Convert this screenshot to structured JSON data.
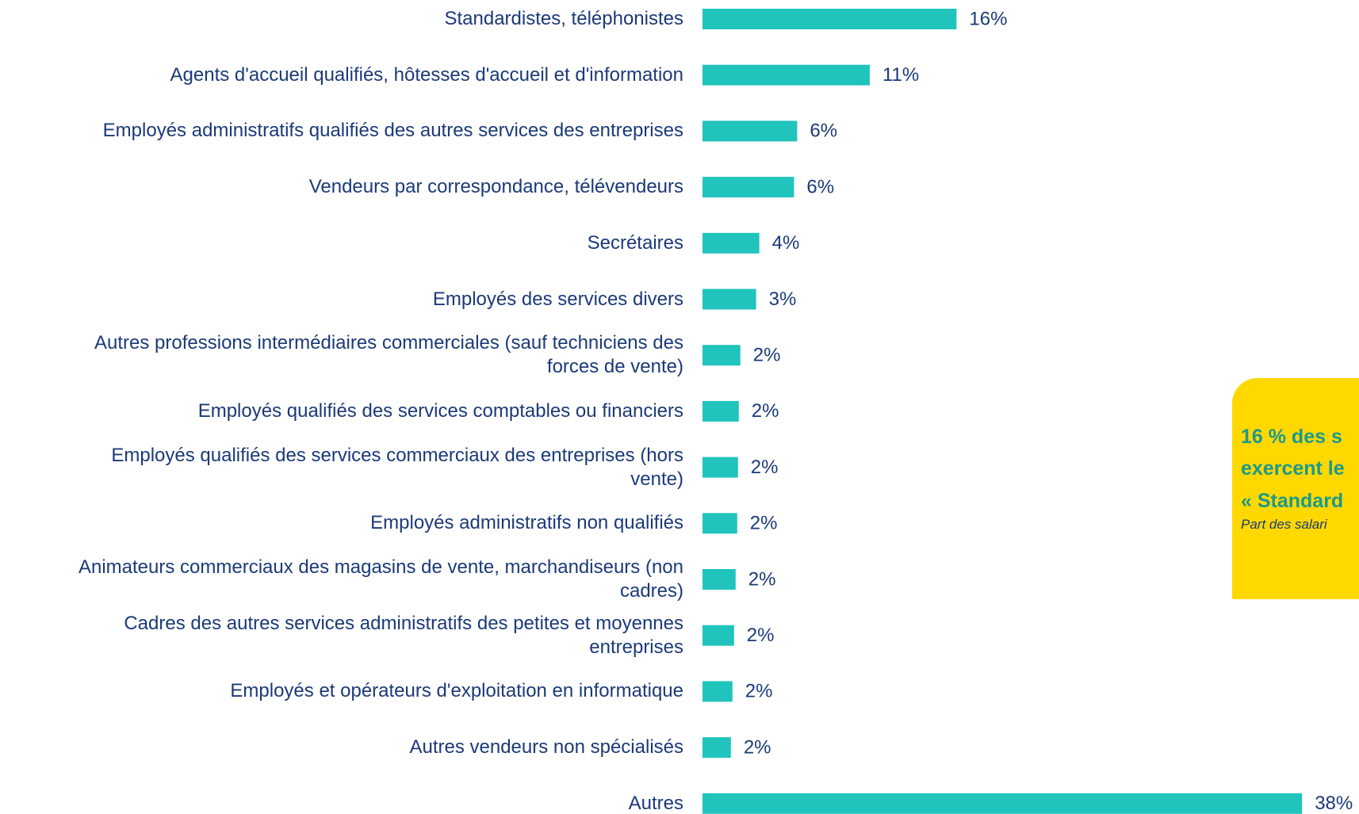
{
  "chart_data": {
    "type": "barh",
    "categories": [
      "Standardistes, téléphonistes",
      "Agents d'accueil qualifiés, hôtesses d'accueil et d'information",
      "Employés administratifs qualifiés des autres services des entreprises",
      "Vendeurs par correspondance, télévendeurs",
      "Secrétaires",
      "Employés des services divers",
      "Autres professions intermédiaires commerciales (sauf techniciens des\nforces de vente)",
      "Employés qualifiés des services comptables ou financiers",
      "Employés qualifiés des services commerciaux des entreprises (hors\nvente)",
      "Employés administratifs non qualifiés",
      "Animateurs commerciaux des magasins de vente, marchandiseurs (non\ncadres)",
      "Cadres des autres services administratifs des petites et moyennes\nentreprises",
      "Employés et opérateurs d'exploitation en informatique",
      "Autres vendeurs non spécialisés",
      "Autres"
    ],
    "values": [
      16.1,
      10.6,
      6.0,
      5.8,
      3.6,
      3.4,
      2.4,
      2.3,
      2.25,
      2.2,
      2.1,
      2.0,
      1.9,
      1.8,
      38.0
    ],
    "value_labels": [
      "16%",
      "11%",
      "6%",
      "6%",
      "4%",
      "3%",
      "2%",
      "2%",
      "2%",
      "2%",
      "2%",
      "2%",
      "2%",
      "2%",
      "38%"
    ],
    "color": "#20c4bc"
  },
  "callout": {
    "lines": [
      "16 % des s",
      "exercent le",
      "« Standard"
    ],
    "note": "Part des salari"
  }
}
